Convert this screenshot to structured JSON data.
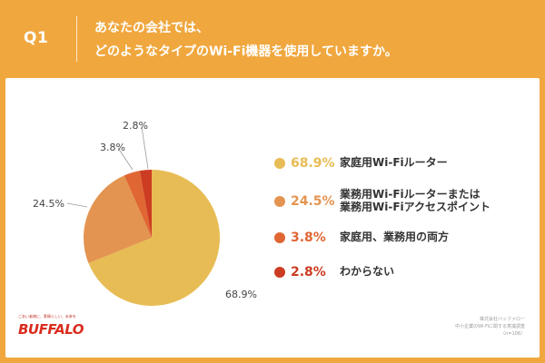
{
  "header": {
    "q_label": "Q1",
    "question_line1": "あなたの会社では、",
    "question_line2": "どのようなタイプのWi-Fi機器を使用していますか。"
  },
  "chart_data": {
    "type": "pie",
    "title": "",
    "categories": [
      "家庭用Wi-Fiルーター",
      "業務用Wi-Fiルーターまたは業務用Wi-Fiアクセスポイント",
      "家庭用、業務用の両方",
      "わからない"
    ],
    "values": [
      68.9,
      24.5,
      3.8,
      2.8
    ],
    "value_labels": [
      "68.9%",
      "24.5%",
      "3.8%",
      "2.8%"
    ],
    "colors": [
      "#E8BC55",
      "#E39450",
      "#E06634",
      "#CC3C22"
    ],
    "legend_position": "right",
    "grid": false
  },
  "legend": [
    {
      "pct": "68.9%",
      "lines": [
        "家庭用Wi-Fiルーター"
      ],
      "color": "#E8BC55"
    },
    {
      "pct": "24.5%",
      "lines": [
        "業務用Wi-Fiルーターまたは",
        "業務用Wi-Fiアクセスポイント"
      ],
      "color": "#E39450"
    },
    {
      "pct": "3.8%",
      "lines": [
        "家庭用、業務用の両方"
      ],
      "color": "#E06634"
    },
    {
      "pct": "2.8%",
      "lines": [
        "わからない"
      ],
      "color": "#CC3C22"
    }
  ],
  "footer": {
    "logo_tagline": "ごあい者様に、素晴らしい、未来を",
    "logo": "BUFFALO",
    "source_line1": "株式会社バッファロー",
    "source_line2": "中小企業のWi-Fiに関する意識調査",
    "source_line3": "（n=106）"
  }
}
